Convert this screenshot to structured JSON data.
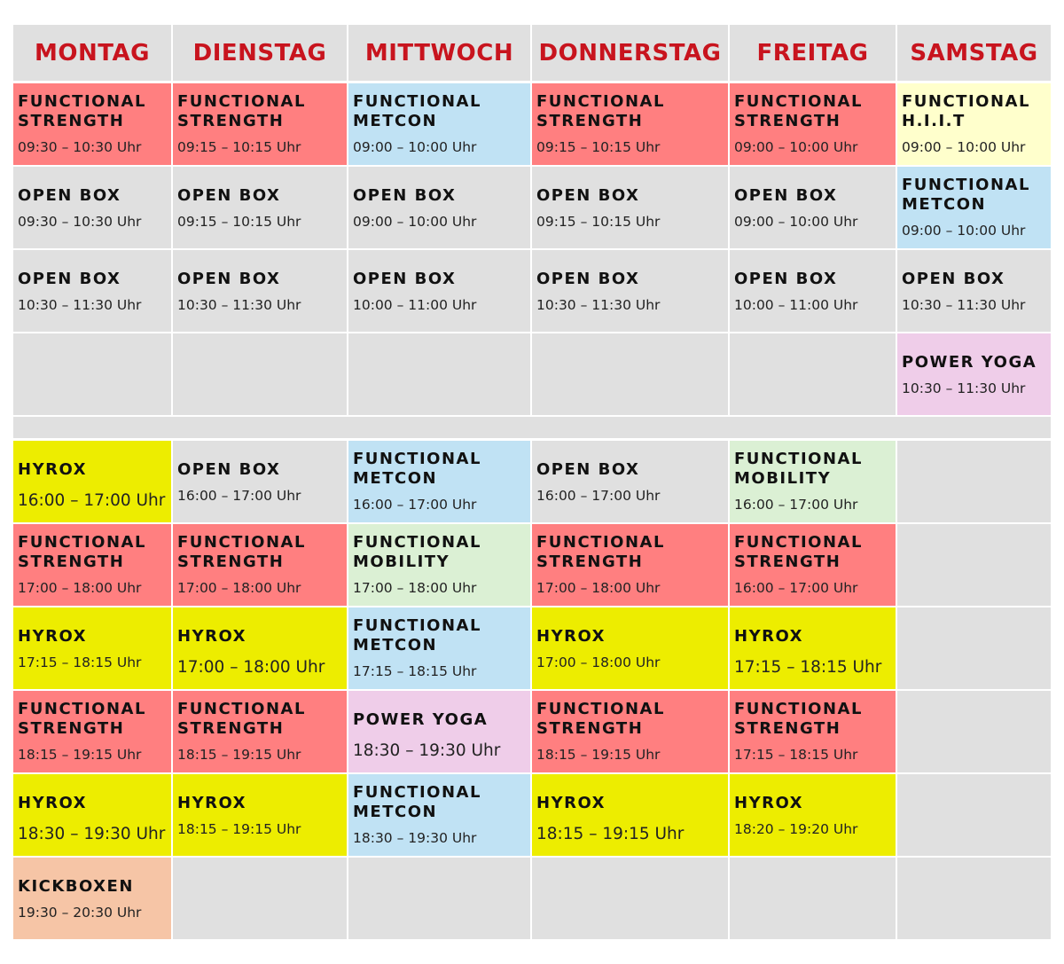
{
  "colors": {
    "header_bg": "#e0e0e0",
    "header_text": "#c8141e",
    "strength": "#ff7f80",
    "metcon": "#c0e2f4",
    "hiit": "#ffffcc",
    "open": "#e0e0e0",
    "yoga": "#efcde9",
    "hyrox": "#eded00",
    "mobility": "#dbf0d4",
    "kickbox": "#f6c5a6"
  },
  "days": [
    "MONTAG",
    "DIENSTAG",
    "MITTWOCH",
    "DONNERSTAG",
    "FREITAG",
    "SAMSTAG"
  ],
  "morning": [
    [
      {
        "name": "FUNCTIONAL\nSTRENGTH",
        "time": "09:30 – 10:30 Uhr",
        "type": "strength"
      },
      {
        "name": "FUNCTIONAL\nSTRENGTH",
        "time": "09:15 – 10:15 Uhr",
        "type": "strength"
      },
      {
        "name": "FUNCTIONAL\nMETCON",
        "time": "09:00 – 10:00 Uhr",
        "type": "metcon"
      },
      {
        "name": "FUNCTIONAL\nSTRENGTH",
        "time": "09:15 – 10:15 Uhr",
        "type": "strength"
      },
      {
        "name": "FUNCTIONAL\nSTRENGTH",
        "time": "09:00 – 10:00 Uhr",
        "type": "strength"
      },
      {
        "name": "FUNCTIONAL\nH.I.I.T",
        "time": "09:00 – 10:00 Uhr",
        "type": "hiit"
      }
    ],
    [
      {
        "name": "OPEN BOX",
        "time": "09:30 – 10:30 Uhr",
        "type": "open"
      },
      {
        "name": "OPEN BOX",
        "time": "09:15 – 10:15 Uhr",
        "type": "open"
      },
      {
        "name": "OPEN BOX",
        "time": "09:00 – 10:00 Uhr",
        "type": "open"
      },
      {
        "name": "OPEN BOX",
        "time": "09:15 – 10:15 Uhr",
        "type": "open"
      },
      {
        "name": "OPEN BOX",
        "time": "09:00 – 10:00 Uhr",
        "type": "open"
      },
      {
        "name": "FUNCTIONAL\nMETCON",
        "time": "09:00 – 10:00 Uhr",
        "type": "metcon"
      }
    ],
    [
      {
        "name": "OPEN BOX",
        "time": "10:30 – 11:30 Uhr",
        "type": "open"
      },
      {
        "name": "OPEN BOX",
        "time": "10:30 – 11:30 Uhr",
        "type": "open"
      },
      {
        "name": "OPEN BOX",
        "time": "10:00 – 11:00 Uhr",
        "type": "open"
      },
      {
        "name": "OPEN BOX",
        "time": "10:30 – 11:30 Uhr",
        "type": "open"
      },
      {
        "name": "OPEN BOX",
        "time": "10:00 – 11:00 Uhr",
        "type": "open"
      },
      {
        "name": "OPEN BOX",
        "time": "10:30 – 11:30 Uhr",
        "type": "open"
      }
    ],
    [
      {
        "name": "",
        "time": "",
        "type": "open"
      },
      {
        "name": "",
        "time": "",
        "type": "open"
      },
      {
        "name": "",
        "time": "",
        "type": "open"
      },
      {
        "name": "",
        "time": "",
        "type": "open"
      },
      {
        "name": "",
        "time": "",
        "type": "open"
      },
      {
        "name": "POWER YOGA",
        "time": "10:30 – 11:30 Uhr",
        "type": "yoga"
      }
    ]
  ],
  "evening": [
    [
      {
        "name": "HYROX",
        "time": "16:00 – 17:00 Uhr",
        "type": "hyrox",
        "big": true
      },
      {
        "name": "OPEN BOX",
        "time": "16:00 – 17:00 Uhr",
        "type": "open"
      },
      {
        "name": "FUNCTIONAL\nMETCON",
        "time": "16:00 – 17:00 Uhr",
        "type": "metcon"
      },
      {
        "name": "OPEN BOX",
        "time": "16:00 – 17:00 Uhr",
        "type": "open"
      },
      {
        "name": "FUNCTIONAL\nMOBILITY",
        "time": "16:00 – 17:00 Uhr",
        "type": "mobility"
      },
      {
        "name": "",
        "time": "",
        "type": "open"
      }
    ],
    [
      {
        "name": "FUNCTIONAL\nSTRENGTH",
        "time": "17:00 – 18:00 Uhr",
        "type": "strength"
      },
      {
        "name": "FUNCTIONAL\nSTRENGTH",
        "time": "17:00 – 18:00 Uhr",
        "type": "strength"
      },
      {
        "name": "FUNCTIONAL\nMOBILITY",
        "time": "17:00 – 18:00 Uhr",
        "type": "mobility"
      },
      {
        "name": "FUNCTIONAL\nSTRENGTH",
        "time": "17:00 – 18:00 Uhr",
        "type": "strength"
      },
      {
        "name": "FUNCTIONAL\nSTRENGTH",
        "time": "16:00 – 17:00 Uhr",
        "type": "strength"
      },
      {
        "name": "",
        "time": "",
        "type": "open"
      }
    ],
    [
      {
        "name": "HYROX",
        "time": "17:15 – 18:15 Uhr",
        "type": "hyrox"
      },
      {
        "name": "HYROX",
        "time": "17:00 – 18:00 Uhr",
        "type": "hyrox",
        "big": true
      },
      {
        "name": "FUNCTIONAL\nMETCON",
        "time": "17:15 – 18:15 Uhr",
        "type": "metcon"
      },
      {
        "name": "HYROX",
        "time": "17:00 – 18:00 Uhr",
        "type": "hyrox"
      },
      {
        "name": "HYROX",
        "time": "17:15 – 18:15 Uhr",
        "type": "hyrox",
        "big": true
      },
      {
        "name": "",
        "time": "",
        "type": "open"
      }
    ],
    [
      {
        "name": "FUNCTIONAL\nSTRENGTH",
        "time": "18:15 – 19:15 Uhr",
        "type": "strength"
      },
      {
        "name": "FUNCTIONAL\nSTRENGTH",
        "time": "18:15 – 19:15 Uhr",
        "type": "strength"
      },
      {
        "name": "POWER YOGA",
        "time": "18:30 – 19:30 Uhr",
        "type": "yoga",
        "big": true
      },
      {
        "name": "FUNCTIONAL\nSTRENGTH",
        "time": "18:15 – 19:15 Uhr",
        "type": "strength"
      },
      {
        "name": "FUNCTIONAL\nSTRENGTH",
        "time": "17:15 – 18:15 Uhr",
        "type": "strength"
      },
      {
        "name": "",
        "time": "",
        "type": "open"
      }
    ],
    [
      {
        "name": "HYROX",
        "time": "18:30 – 19:30 Uhr",
        "type": "hyrox",
        "big": true
      },
      {
        "name": "HYROX",
        "time": "18:15 – 19:15 Uhr",
        "type": "hyrox"
      },
      {
        "name": "FUNCTIONAL\nMETCON",
        "time": "18:30 – 19:30 Uhr",
        "type": "metcon"
      },
      {
        "name": "HYROX",
        "time": "18:15 – 19:15 Uhr",
        "type": "hyrox",
        "big": true
      },
      {
        "name": "HYROX",
        "time": "18:20 – 19:20 Uhr",
        "type": "hyrox"
      },
      {
        "name": "",
        "time": "",
        "type": "open"
      }
    ],
    [
      {
        "name": "KICKBOXEN",
        "time": "19:30 – 20:30 Uhr",
        "type": "kickbox"
      },
      {
        "name": "",
        "time": "",
        "type": "open"
      },
      {
        "name": "",
        "time": "",
        "type": "open"
      },
      {
        "name": "",
        "time": "",
        "type": "open"
      },
      {
        "name": "",
        "time": "",
        "type": "open"
      },
      {
        "name": "",
        "time": "",
        "type": "open"
      }
    ]
  ]
}
